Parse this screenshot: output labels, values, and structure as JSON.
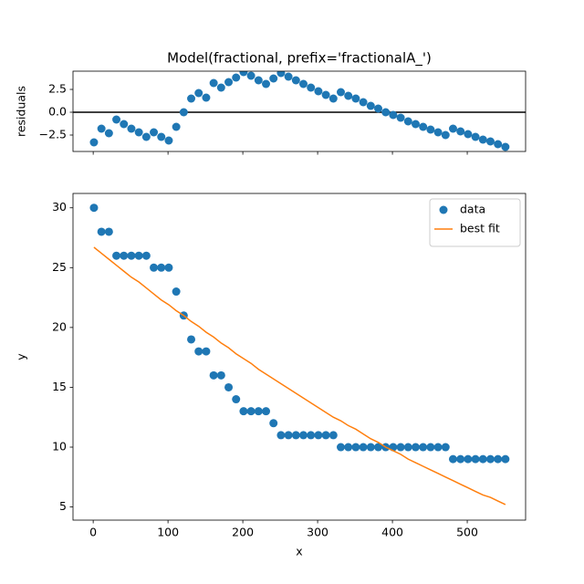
{
  "chart_data": [
    {
      "type": "scatter",
      "title": "Model(fractional, prefix='fractionalA_')",
      "ylabel": "residuals",
      "color": "#1f77b4",
      "hline": 0,
      "x": [
        1,
        11,
        21,
        31,
        41,
        51,
        61,
        71,
        81,
        91,
        101,
        111,
        121,
        131,
        141,
        151,
        161,
        171,
        181,
        191,
        201,
        211,
        221,
        231,
        241,
        251,
        261,
        271,
        281,
        291,
        301,
        311,
        321,
        331,
        341,
        351,
        361,
        371,
        381,
        391,
        401,
        411,
        421,
        431,
        441,
        451,
        461,
        471,
        481,
        491,
        501,
        511,
        521,
        531,
        541,
        551
      ],
      "values": [
        -3.3,
        -1.8,
        -2.3,
        -0.8,
        -1.3,
        -1.8,
        -2.2,
        -2.7,
        -2.2,
        -2.7,
        -3.1,
        -1.6,
        0.0,
        1.5,
        2.1,
        1.6,
        3.2,
        2.7,
        3.3,
        3.8,
        4.4,
        4.0,
        3.5,
        3.1,
        3.7,
        4.3,
        3.9,
        3.5,
        3.1,
        2.7,
        2.3,
        1.9,
        1.5,
        2.2,
        1.8,
        1.5,
        1.1,
        0.7,
        0.4,
        0.0,
        -0.3,
        -0.6,
        -1.0,
        -1.3,
        -1.6,
        -1.9,
        -2.2,
        -2.5,
        -1.8,
        -2.1,
        -2.4,
        -2.7,
        -3.0,
        -3.2,
        -3.5,
        -3.8
      ],
      "xlim": [
        -27,
        578
      ],
      "xticks": [
        0,
        100,
        200,
        300,
        400,
        500
      ],
      "ylim": [
        -4.3,
        4.5
      ],
      "yticks": [
        {
          "value": -2.5,
          "label": "−2.5"
        },
        {
          "value": 0,
          "label": "0.0"
        },
        2.5
      ]
    },
    {
      "type": "scatter",
      "xlabel": "x",
      "ylabel": "y",
      "legend": "upper right",
      "x": [
        1,
        11,
        21,
        31,
        41,
        51,
        61,
        71,
        81,
        91,
        101,
        111,
        121,
        131,
        141,
        151,
        161,
        171,
        181,
        191,
        201,
        211,
        221,
        231,
        241,
        251,
        261,
        271,
        281,
        291,
        301,
        311,
        321,
        331,
        341,
        351,
        361,
        371,
        381,
        391,
        401,
        411,
        421,
        431,
        441,
        451,
        461,
        471,
        481,
        491,
        501,
        511,
        521,
        531,
        541,
        551
      ],
      "series": [
        {
          "name": "data",
          "kind": "scatter",
          "color": "#1f77b4",
          "values": [
            30,
            28,
            28,
            26,
            26,
            26,
            26,
            26,
            25,
            25,
            25,
            23,
            21,
            19,
            18,
            18,
            16,
            16,
            15,
            14,
            13,
            13,
            13,
            13,
            12,
            11,
            11,
            11,
            11,
            11,
            11,
            11,
            11,
            10,
            10,
            10,
            10,
            10,
            10,
            10,
            10,
            10,
            10,
            10,
            10,
            10,
            10,
            10,
            9,
            9,
            9,
            9,
            9,
            9,
            9,
            9
          ]
        },
        {
          "name": "best fit",
          "kind": "line",
          "color": "#ff7f0e",
          "values": [
            26.7,
            26.2,
            25.7,
            25.2,
            24.7,
            24.2,
            23.8,
            23.3,
            22.8,
            22.3,
            21.9,
            21.4,
            21.0,
            20.5,
            20.1,
            19.6,
            19.2,
            18.7,
            18.3,
            17.8,
            17.4,
            17.0,
            16.5,
            16.1,
            15.7,
            15.3,
            14.9,
            14.5,
            14.1,
            13.7,
            13.3,
            12.9,
            12.5,
            12.2,
            11.8,
            11.5,
            11.1,
            10.7,
            10.4,
            10.0,
            9.7,
            9.4,
            9.0,
            8.7,
            8.4,
            8.1,
            7.8,
            7.5,
            7.2,
            6.9,
            6.6,
            6.3,
            6.0,
            5.8,
            5.5,
            5.2
          ]
        }
      ],
      "xlim": [
        -27,
        578
      ],
      "xticks": [
        0,
        100,
        200,
        300,
        400,
        500
      ],
      "ylim": [
        3.9,
        31.2
      ],
      "yticks": [
        5,
        10,
        15,
        20,
        25,
        30
      ]
    }
  ]
}
